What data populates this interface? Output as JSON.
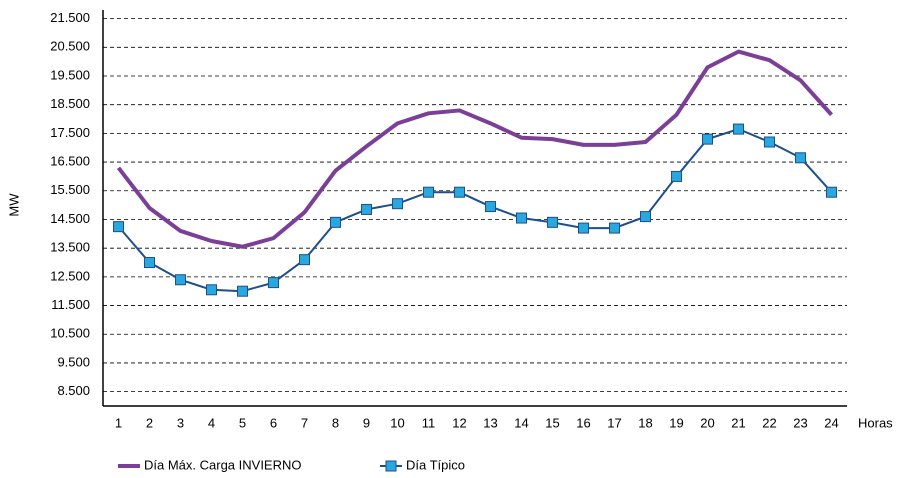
{
  "chart_data": {
    "type": "line",
    "y_label": "MW",
    "x_label": "Horas",
    "categories": [
      "1",
      "2",
      "3",
      "4",
      "5",
      "6",
      "7",
      "8",
      "9",
      "10",
      "11",
      "12",
      "13",
      "14",
      "15",
      "16",
      "17",
      "18",
      "19",
      "20",
      "21",
      "22",
      "23",
      "24"
    ],
    "series": [
      {
        "name": "Día Máx. Carga INVIERNO",
        "color": "#7b3f98",
        "marker": "none",
        "values": [
          16300,
          14900,
          14100,
          13750,
          13550,
          13850,
          14750,
          16200,
          17050,
          17850,
          18200,
          18300,
          17850,
          17350,
          17300,
          17100,
          17100,
          17200,
          18150,
          19800,
          20350,
          20050,
          19350,
          18150
        ]
      },
      {
        "name": "Día Típico",
        "color": "#1f4e8c",
        "marker_color": "#29a8e0",
        "marker": "square",
        "values": [
          14250,
          13000,
          12400,
          12050,
          12000,
          12300,
          13100,
          14400,
          14850,
          15050,
          15450,
          15450,
          14950,
          14550,
          14400,
          14200,
          14200,
          14600,
          16000,
          17300,
          17650,
          17200,
          16650,
          15450
        ]
      }
    ],
    "ylim": [
      8000,
      21800
    ],
    "yticks": [
      {
        "value": 8500,
        "label": "8.500"
      },
      {
        "value": 9500,
        "label": "9.500"
      },
      {
        "value": 10500,
        "label": "10.500"
      },
      {
        "value": 11500,
        "label": "11.500"
      },
      {
        "value": 12500,
        "label": "12.500"
      },
      {
        "value": 13500,
        "label": "13.500"
      },
      {
        "value": 14500,
        "label": "14.500"
      },
      {
        "value": 15500,
        "label": "15.500"
      },
      {
        "value": 16500,
        "label": "16.500"
      },
      {
        "value": 17500,
        "label": "17.500"
      },
      {
        "value": 18500,
        "label": "18.500"
      },
      {
        "value": 19500,
        "label": "19.500"
      },
      {
        "value": 20500,
        "label": "20.500"
      },
      {
        "value": 21500,
        "label": "21.500"
      }
    ],
    "grid": true,
    "legend": "bottom"
  }
}
